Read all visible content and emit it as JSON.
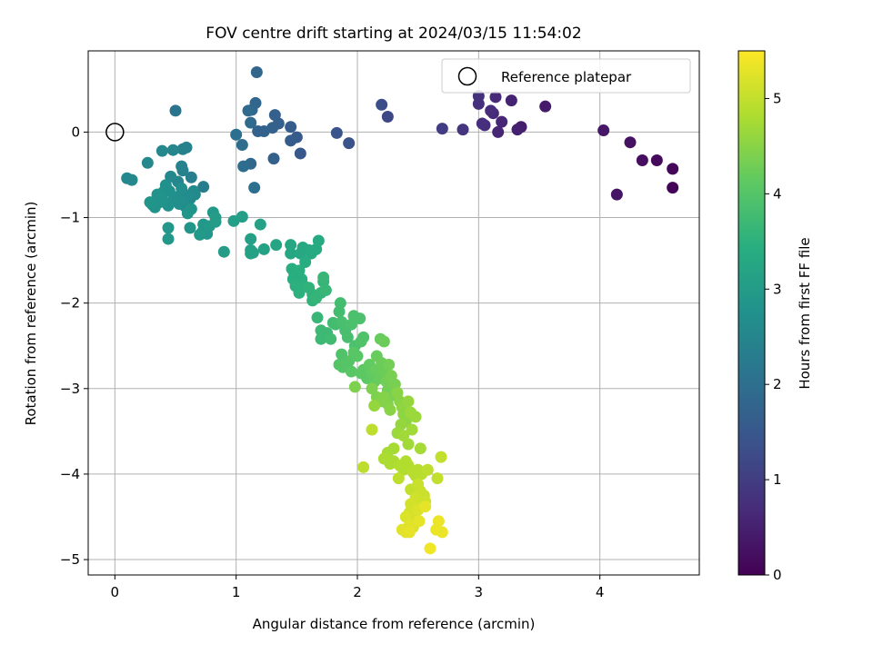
{
  "chart_data": {
    "type": "scatter",
    "title": "FOV centre drift starting at 2024/03/15 11:54:02",
    "xlabel": "Angular distance from reference (arcmin)",
    "ylabel": "Rotation from reference (arcmin)",
    "xlim": [
      -0.22,
      4.82
    ],
    "ylim": [
      -5.18,
      0.95
    ],
    "xticks": [
      0,
      1,
      2,
      3,
      4
    ],
    "yticks": [
      0,
      -1,
      -2,
      -3,
      -4,
      -5
    ],
    "grid": true,
    "legend": {
      "location": "top-right",
      "entries": [
        {
          "label": "Reference platepar",
          "marker": "open-circle"
        }
      ]
    },
    "reference_point": {
      "x": 0,
      "y": 0
    },
    "colorbar": {
      "label": "Hours from first FF file",
      "range": [
        0,
        5.5
      ],
      "ticks": [
        0,
        1,
        2,
        3,
        4,
        5
      ],
      "colormap": "viridis"
    },
    "points": [
      {
        "x": 4.6,
        "y": -0.65,
        "h": 0.05
      },
      {
        "x": 4.6,
        "y": -0.43,
        "h": 0.1
      },
      {
        "x": 4.47,
        "y": -0.33,
        "h": 0.15
      },
      {
        "x": 4.35,
        "y": -0.33,
        "h": 0.2
      },
      {
        "x": 4.25,
        "y": -0.12,
        "h": 0.25
      },
      {
        "x": 4.14,
        "y": -0.73,
        "h": 0.3
      },
      {
        "x": 4.03,
        "y": 0.02,
        "h": 0.35
      },
      {
        "x": 3.55,
        "y": 0.3,
        "h": 0.4
      },
      {
        "x": 3.35,
        "y": 0.06,
        "h": 0.45
      },
      {
        "x": 3.32,
        "y": 0.03,
        "h": 0.5
      },
      {
        "x": 3.27,
        "y": 0.37,
        "h": 0.55
      },
      {
        "x": 3.19,
        "y": 0.12,
        "h": 0.6
      },
      {
        "x": 3.16,
        "y": 0.0,
        "h": 0.6
      },
      {
        "x": 3.14,
        "y": 0.41,
        "h": 0.65
      },
      {
        "x": 3.12,
        "y": 0.22,
        "h": 0.65
      },
      {
        "x": 3.1,
        "y": 0.25,
        "h": 0.7
      },
      {
        "x": 3.05,
        "y": 0.08,
        "h": 0.7
      },
      {
        "x": 3.03,
        "y": 0.1,
        "h": 0.75
      },
      {
        "x": 3.0,
        "y": 0.33,
        "h": 0.75
      },
      {
        "x": 3.0,
        "y": 0.42,
        "h": 0.8
      },
      {
        "x": 2.87,
        "y": 0.03,
        "h": 0.85
      },
      {
        "x": 2.7,
        "y": 0.04,
        "h": 1.0
      },
      {
        "x": 2.25,
        "y": 0.18,
        "h": 1.2
      },
      {
        "x": 2.2,
        "y": 0.32,
        "h": 1.3
      },
      {
        "x": 1.93,
        "y": -0.13,
        "h": 1.4
      },
      {
        "x": 1.83,
        "y": -0.01,
        "h": 1.45
      },
      {
        "x": 1.53,
        "y": -0.25,
        "h": 1.5
      },
      {
        "x": 1.5,
        "y": -0.06,
        "h": 1.55
      },
      {
        "x": 1.45,
        "y": -0.1,
        "h": 1.6
      },
      {
        "x": 1.45,
        "y": 0.06,
        "h": 1.6
      },
      {
        "x": 1.35,
        "y": 0.1,
        "h": 1.65
      },
      {
        "x": 1.32,
        "y": 0.2,
        "h": 1.65
      },
      {
        "x": 1.31,
        "y": -0.31,
        "h": 1.7
      },
      {
        "x": 1.3,
        "y": 0.05,
        "h": 1.7
      },
      {
        "x": 1.23,
        "y": 0.01,
        "h": 1.75
      },
      {
        "x": 1.18,
        "y": 0.01,
        "h": 1.75
      },
      {
        "x": 1.17,
        "y": 0.7,
        "h": 1.8
      },
      {
        "x": 1.16,
        "y": 0.34,
        "h": 1.8
      },
      {
        "x": 1.13,
        "y": 0.26,
        "h": 1.85
      },
      {
        "x": 1.12,
        "y": -0.37,
        "h": 1.85
      },
      {
        "x": 1.12,
        "y": 0.11,
        "h": 1.9
      },
      {
        "x": 1.1,
        "y": 0.25,
        "h": 1.9
      },
      {
        "x": 1.06,
        "y": -0.4,
        "h": 1.95
      },
      {
        "x": 1.05,
        "y": -0.15,
        "h": 1.95
      },
      {
        "x": 1.0,
        "y": -0.03,
        "h": 2.0
      },
      {
        "x": 1.15,
        "y": -0.65,
        "h": 2.0
      },
      {
        "x": 0.5,
        "y": 0.25,
        "h": 2.1
      },
      {
        "x": 0.73,
        "y": -0.64,
        "h": 2.3
      },
      {
        "x": 0.63,
        "y": -0.53,
        "h": 2.35
      },
      {
        "x": 0.59,
        "y": -0.18,
        "h": 2.4
      },
      {
        "x": 0.56,
        "y": -0.2,
        "h": 2.4
      },
      {
        "x": 0.55,
        "y": -0.4,
        "h": 2.45
      },
      {
        "x": 0.56,
        "y": -0.45,
        "h": 2.45
      },
      {
        "x": 0.52,
        "y": -0.58,
        "h": 2.5
      },
      {
        "x": 0.48,
        "y": -0.21,
        "h": 2.5
      },
      {
        "x": 0.46,
        "y": -0.52,
        "h": 2.55
      },
      {
        "x": 0.39,
        "y": -0.22,
        "h": 2.55
      },
      {
        "x": 0.27,
        "y": -0.36,
        "h": 2.55
      },
      {
        "x": 0.1,
        "y": -0.54,
        "h": 2.55
      },
      {
        "x": 0.14,
        "y": -0.56,
        "h": 2.55
      },
      {
        "x": 0.66,
        "y": -0.73,
        "h": 2.6
      },
      {
        "x": 0.65,
        "y": -0.69,
        "h": 2.6
      },
      {
        "x": 0.62,
        "y": -0.78,
        "h": 2.6
      },
      {
        "x": 0.6,
        "y": -0.74,
        "h": 2.65
      },
      {
        "x": 0.58,
        "y": -0.87,
        "h": 2.65
      },
      {
        "x": 0.56,
        "y": -0.75,
        "h": 2.65
      },
      {
        "x": 0.55,
        "y": -0.66,
        "h": 2.7
      },
      {
        "x": 0.53,
        "y": -0.84,
        "h": 2.7
      },
      {
        "x": 0.5,
        "y": -0.76,
        "h": 2.7
      },
      {
        "x": 0.48,
        "y": -0.8,
        "h": 2.7
      },
      {
        "x": 0.45,
        "y": -0.69,
        "h": 2.75
      },
      {
        "x": 0.44,
        "y": -0.86,
        "h": 2.75
      },
      {
        "x": 0.42,
        "y": -0.62,
        "h": 2.75
      },
      {
        "x": 0.4,
        "y": -0.7,
        "h": 2.75
      },
      {
        "x": 0.39,
        "y": -0.78,
        "h": 2.8
      },
      {
        "x": 0.37,
        "y": -0.82,
        "h": 2.8
      },
      {
        "x": 0.35,
        "y": -0.73,
        "h": 2.8
      },
      {
        "x": 0.33,
        "y": -0.88,
        "h": 2.8
      },
      {
        "x": 0.31,
        "y": -0.85,
        "h": 2.8
      },
      {
        "x": 0.29,
        "y": -0.82,
        "h": 2.85
      },
      {
        "x": 0.6,
        "y": -0.95,
        "h": 2.85
      },
      {
        "x": 0.63,
        "y": -0.9,
        "h": 2.85
      },
      {
        "x": 0.62,
        "y": -1.12,
        "h": 2.85
      },
      {
        "x": 0.44,
        "y": -1.12,
        "h": 2.9
      },
      {
        "x": 0.44,
        "y": -1.25,
        "h": 2.9
      },
      {
        "x": 0.72,
        "y": -1.17,
        "h": 2.9
      },
      {
        "x": 0.73,
        "y": -1.08,
        "h": 2.9
      },
      {
        "x": 0.76,
        "y": -1.19,
        "h": 2.9
      },
      {
        "x": 0.7,
        "y": -1.2,
        "h": 2.95
      },
      {
        "x": 0.78,
        "y": -1.1,
        "h": 2.95
      },
      {
        "x": 0.81,
        "y": -0.94,
        "h": 2.95
      },
      {
        "x": 0.83,
        "y": -1.05,
        "h": 3.0
      },
      {
        "x": 0.83,
        "y": -1.0,
        "h": 3.0
      },
      {
        "x": 0.9,
        "y": -1.4,
        "h": 3.0
      },
      {
        "x": 0.98,
        "y": -1.04,
        "h": 3.05
      },
      {
        "x": 1.05,
        "y": -0.99,
        "h": 3.05
      },
      {
        "x": 1.12,
        "y": -1.25,
        "h": 3.1
      },
      {
        "x": 1.12,
        "y": -1.38,
        "h": 3.1
      },
      {
        "x": 1.14,
        "y": -1.41,
        "h": 3.1
      },
      {
        "x": 1.12,
        "y": -1.42,
        "h": 3.15
      },
      {
        "x": 1.2,
        "y": -1.08,
        "h": 3.15
      },
      {
        "x": 1.23,
        "y": -1.37,
        "h": 3.15
      },
      {
        "x": 1.33,
        "y": -1.32,
        "h": 3.2
      },
      {
        "x": 1.45,
        "y": -1.32,
        "h": 3.25
      },
      {
        "x": 1.45,
        "y": -1.42,
        "h": 3.25
      },
      {
        "x": 1.53,
        "y": -1.42,
        "h": 3.3
      },
      {
        "x": 1.55,
        "y": -1.35,
        "h": 3.3
      },
      {
        "x": 1.6,
        "y": -1.38,
        "h": 3.3
      },
      {
        "x": 1.62,
        "y": -1.42,
        "h": 3.35
      },
      {
        "x": 1.66,
        "y": -1.37,
        "h": 3.35
      },
      {
        "x": 1.68,
        "y": -1.27,
        "h": 3.35
      },
      {
        "x": 1.57,
        "y": -1.52,
        "h": 3.4
      },
      {
        "x": 1.46,
        "y": -1.6,
        "h": 3.4
      },
      {
        "x": 1.48,
        "y": -1.65,
        "h": 3.4
      },
      {
        "x": 1.52,
        "y": -1.62,
        "h": 3.45
      },
      {
        "x": 1.54,
        "y": -1.72,
        "h": 3.45
      },
      {
        "x": 1.47,
        "y": -1.72,
        "h": 3.45
      },
      {
        "x": 1.49,
        "y": -1.8,
        "h": 3.5
      },
      {
        "x": 1.52,
        "y": -1.88,
        "h": 3.5
      },
      {
        "x": 1.56,
        "y": -1.8,
        "h": 3.5
      },
      {
        "x": 1.6,
        "y": -1.82,
        "h": 3.55
      },
      {
        "x": 1.63,
        "y": -1.9,
        "h": 3.55
      },
      {
        "x": 1.63,
        "y": -1.97,
        "h": 3.55
      },
      {
        "x": 1.66,
        "y": -1.94,
        "h": 3.6
      },
      {
        "x": 1.7,
        "y": -1.88,
        "h": 3.6
      },
      {
        "x": 1.72,
        "y": -1.75,
        "h": 3.6
      },
      {
        "x": 1.72,
        "y": -1.7,
        "h": 3.65
      },
      {
        "x": 1.74,
        "y": -1.85,
        "h": 3.65
      },
      {
        "x": 1.67,
        "y": -2.17,
        "h": 3.65
      },
      {
        "x": 1.7,
        "y": -2.32,
        "h": 3.7
      },
      {
        "x": 1.7,
        "y": -2.42,
        "h": 3.7
      },
      {
        "x": 1.75,
        "y": -2.35,
        "h": 3.7
      },
      {
        "x": 1.78,
        "y": -2.42,
        "h": 3.75
      },
      {
        "x": 1.8,
        "y": -2.23,
        "h": 3.75
      },
      {
        "x": 1.82,
        "y": -2.25,
        "h": 3.8
      },
      {
        "x": 1.85,
        "y": -2.1,
        "h": 3.8
      },
      {
        "x": 1.86,
        "y": -2.0,
        "h": 3.8
      },
      {
        "x": 1.87,
        "y": -2.22,
        "h": 3.85
      },
      {
        "x": 1.9,
        "y": -2.32,
        "h": 3.85
      },
      {
        "x": 1.92,
        "y": -2.4,
        "h": 3.85
      },
      {
        "x": 1.95,
        "y": -2.25,
        "h": 3.9
      },
      {
        "x": 1.97,
        "y": -2.15,
        "h": 3.9
      },
      {
        "x": 1.98,
        "y": -2.5,
        "h": 3.9
      },
      {
        "x": 2.02,
        "y": -2.18,
        "h": 3.9
      },
      {
        "x": 2.03,
        "y": -2.45,
        "h": 3.95
      },
      {
        "x": 2.05,
        "y": -2.4,
        "h": 3.95
      },
      {
        "x": 1.87,
        "y": -2.6,
        "h": 3.95
      },
      {
        "x": 1.85,
        "y": -2.72,
        "h": 4.0
      },
      {
        "x": 1.88,
        "y": -2.75,
        "h": 4.0
      },
      {
        "x": 1.93,
        "y": -2.68,
        "h": 4.0
      },
      {
        "x": 1.95,
        "y": -2.8,
        "h": 4.05
      },
      {
        "x": 1.97,
        "y": -2.58,
        "h": 4.05
      },
      {
        "x": 2.0,
        "y": -2.62,
        "h": 4.05
      },
      {
        "x": 2.03,
        "y": -2.82,
        "h": 4.1
      },
      {
        "x": 2.05,
        "y": -2.78,
        "h": 4.1
      },
      {
        "x": 2.08,
        "y": -2.88,
        "h": 4.1
      },
      {
        "x": 2.1,
        "y": -2.72,
        "h": 4.15
      },
      {
        "x": 2.12,
        "y": -2.82,
        "h": 4.15
      },
      {
        "x": 2.14,
        "y": -2.92,
        "h": 4.15
      },
      {
        "x": 2.15,
        "y": -2.78,
        "h": 4.2
      },
      {
        "x": 2.16,
        "y": -2.62,
        "h": 4.2
      },
      {
        "x": 2.18,
        "y": -2.88,
        "h": 4.2
      },
      {
        "x": 2.19,
        "y": -2.42,
        "h": 4.2
      },
      {
        "x": 2.22,
        "y": -2.45,
        "h": 4.25
      },
      {
        "x": 2.2,
        "y": -2.7,
        "h": 4.25
      },
      {
        "x": 2.22,
        "y": -2.8,
        "h": 4.25
      },
      {
        "x": 2.24,
        "y": -2.92,
        "h": 4.3
      },
      {
        "x": 2.25,
        "y": -3.02,
        "h": 4.3
      },
      {
        "x": 2.26,
        "y": -2.72,
        "h": 4.3
      },
      {
        "x": 2.28,
        "y": -2.85,
        "h": 4.35
      },
      {
        "x": 2.29,
        "y": -3.08,
        "h": 4.35
      },
      {
        "x": 2.31,
        "y": -2.95,
        "h": 4.35
      },
      {
        "x": 1.98,
        "y": -2.98,
        "h": 4.4
      },
      {
        "x": 2.12,
        "y": -3.0,
        "h": 4.4
      },
      {
        "x": 2.16,
        "y": -3.1,
        "h": 4.4
      },
      {
        "x": 2.2,
        "y": -3.15,
        "h": 4.45
      },
      {
        "x": 2.22,
        "y": -3.1,
        "h": 4.45
      },
      {
        "x": 2.25,
        "y": -3.18,
        "h": 4.45
      },
      {
        "x": 2.27,
        "y": -3.25,
        "h": 4.5
      },
      {
        "x": 2.33,
        "y": -3.05,
        "h": 4.5
      },
      {
        "x": 2.35,
        "y": -3.15,
        "h": 4.5
      },
      {
        "x": 2.37,
        "y": -3.22,
        "h": 4.55
      },
      {
        "x": 2.38,
        "y": -3.3,
        "h": 4.55
      },
      {
        "x": 2.4,
        "y": -3.38,
        "h": 4.55
      },
      {
        "x": 2.42,
        "y": -3.15,
        "h": 4.6
      },
      {
        "x": 2.14,
        "y": -3.2,
        "h": 4.6
      },
      {
        "x": 2.36,
        "y": -3.42,
        "h": 4.6
      },
      {
        "x": 2.44,
        "y": -3.28,
        "h": 4.65
      },
      {
        "x": 2.48,
        "y": -3.33,
        "h": 4.65
      },
      {
        "x": 2.33,
        "y": -3.52,
        "h": 4.65
      },
      {
        "x": 2.38,
        "y": -3.55,
        "h": 4.7
      },
      {
        "x": 2.42,
        "y": -3.65,
        "h": 4.7
      },
      {
        "x": 2.45,
        "y": -3.48,
        "h": 4.7
      },
      {
        "x": 2.52,
        "y": -3.7,
        "h": 4.75
      },
      {
        "x": 2.3,
        "y": -3.7,
        "h": 4.75
      },
      {
        "x": 2.25,
        "y": -3.75,
        "h": 4.75
      },
      {
        "x": 2.22,
        "y": -3.82,
        "h": 4.8
      },
      {
        "x": 2.27,
        "y": -3.88,
        "h": 4.8
      },
      {
        "x": 2.3,
        "y": -3.85,
        "h": 4.8
      },
      {
        "x": 2.35,
        "y": -3.9,
        "h": 4.85
      },
      {
        "x": 2.38,
        "y": -3.95,
        "h": 4.85
      },
      {
        "x": 2.4,
        "y": -3.85,
        "h": 4.85
      },
      {
        "x": 2.42,
        "y": -3.9,
        "h": 4.85
      },
      {
        "x": 2.46,
        "y": -3.98,
        "h": 4.9
      },
      {
        "x": 2.48,
        "y": -4.02,
        "h": 4.9
      },
      {
        "x": 2.5,
        "y": -3.95,
        "h": 4.9
      },
      {
        "x": 2.53,
        "y": -4.0,
        "h": 4.9
      },
      {
        "x": 2.58,
        "y": -3.95,
        "h": 4.95
      },
      {
        "x": 2.12,
        "y": -3.48,
        "h": 4.95
      },
      {
        "x": 2.05,
        "y": -3.92,
        "h": 4.95
      },
      {
        "x": 2.34,
        "y": -4.05,
        "h": 4.95
      },
      {
        "x": 2.66,
        "y": -4.05,
        "h": 5.0
      },
      {
        "x": 2.69,
        "y": -3.8,
        "h": 5.0
      },
      {
        "x": 2.44,
        "y": -4.18,
        "h": 5.0
      },
      {
        "x": 2.5,
        "y": -4.12,
        "h": 5.05
      },
      {
        "x": 2.52,
        "y": -4.2,
        "h": 5.05
      },
      {
        "x": 2.55,
        "y": -4.25,
        "h": 5.05
      },
      {
        "x": 2.48,
        "y": -4.28,
        "h": 5.1
      },
      {
        "x": 2.53,
        "y": -4.35,
        "h": 5.1
      },
      {
        "x": 2.56,
        "y": -4.32,
        "h": 5.1
      },
      {
        "x": 2.44,
        "y": -4.35,
        "h": 5.15
      },
      {
        "x": 2.43,
        "y": -4.45,
        "h": 5.15
      },
      {
        "x": 2.47,
        "y": -4.5,
        "h": 5.15
      },
      {
        "x": 2.5,
        "y": -4.42,
        "h": 5.2
      },
      {
        "x": 2.4,
        "y": -4.5,
        "h": 5.2
      },
      {
        "x": 2.46,
        "y": -4.62,
        "h": 5.2
      },
      {
        "x": 2.43,
        "y": -4.6,
        "h": 5.25
      },
      {
        "x": 2.4,
        "y": -4.68,
        "h": 5.25
      },
      {
        "x": 2.37,
        "y": -4.65,
        "h": 5.25
      },
      {
        "x": 2.43,
        "y": -4.68,
        "h": 5.3
      },
      {
        "x": 2.51,
        "y": -4.55,
        "h": 5.3
      },
      {
        "x": 2.56,
        "y": -4.38,
        "h": 5.3
      },
      {
        "x": 2.67,
        "y": -4.55,
        "h": 5.35
      },
      {
        "x": 2.65,
        "y": -4.65,
        "h": 5.35
      },
      {
        "x": 2.7,
        "y": -4.68,
        "h": 5.35
      },
      {
        "x": 2.6,
        "y": -4.87,
        "h": 5.4
      }
    ]
  }
}
